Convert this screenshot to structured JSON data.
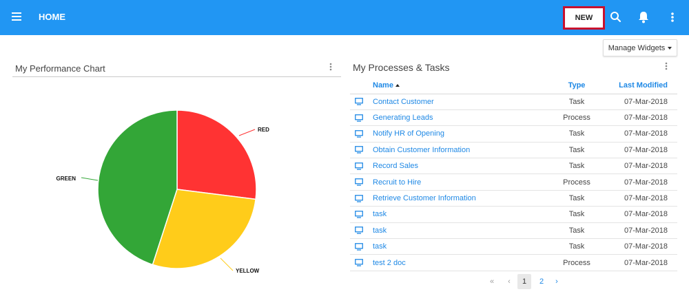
{
  "header": {
    "title": "HOME",
    "new_label": "NEW",
    "icons": [
      "menu-icon",
      "search-icon",
      "bell-icon",
      "more-vert-icon"
    ],
    "bg_color": "#2196f3",
    "highlight_color": "#c8102e"
  },
  "manage_widgets": {
    "label": "Manage Widgets"
  },
  "performance": {
    "title": "My Performance Chart",
    "chart_data": {
      "type": "pie",
      "labels": [
        "RED",
        "YELLOW",
        "GREEN"
      ],
      "values": [
        27,
        28,
        45
      ],
      "colors": [
        "#ff3333",
        "#ffcc1a",
        "#33a637"
      ]
    }
  },
  "processes": {
    "title": "My Processes & Tasks",
    "columns": {
      "name": "Name",
      "type": "Type",
      "modified": "Last Modified"
    },
    "rows": [
      {
        "name": "Contact Customer",
        "type": "Task",
        "modified": "07-Mar-2018"
      },
      {
        "name": "Generating Leads",
        "type": "Process",
        "modified": "07-Mar-2018"
      },
      {
        "name": "Notify HR of Opening",
        "type": "Task",
        "modified": "07-Mar-2018"
      },
      {
        "name": "Obtain Customer Information",
        "type": "Task",
        "modified": "07-Mar-2018"
      },
      {
        "name": "Record Sales",
        "type": "Task",
        "modified": "07-Mar-2018"
      },
      {
        "name": "Recruit to Hire",
        "type": "Process",
        "modified": "07-Mar-2018"
      },
      {
        "name": "Retrieve Customer Information",
        "type": "Task",
        "modified": "07-Mar-2018"
      },
      {
        "name": "task",
        "type": "Task",
        "modified": "07-Mar-2018"
      },
      {
        "name": "task",
        "type": "Task",
        "modified": "07-Mar-2018"
      },
      {
        "name": "task",
        "type": "Task",
        "modified": "07-Mar-2018"
      },
      {
        "name": "test 2 doc",
        "type": "Process",
        "modified": "07-Mar-2018"
      }
    ]
  },
  "pagination": {
    "first": "«",
    "prev": "‹",
    "pages": [
      "1",
      "2"
    ],
    "current": "1",
    "next": "›"
  }
}
